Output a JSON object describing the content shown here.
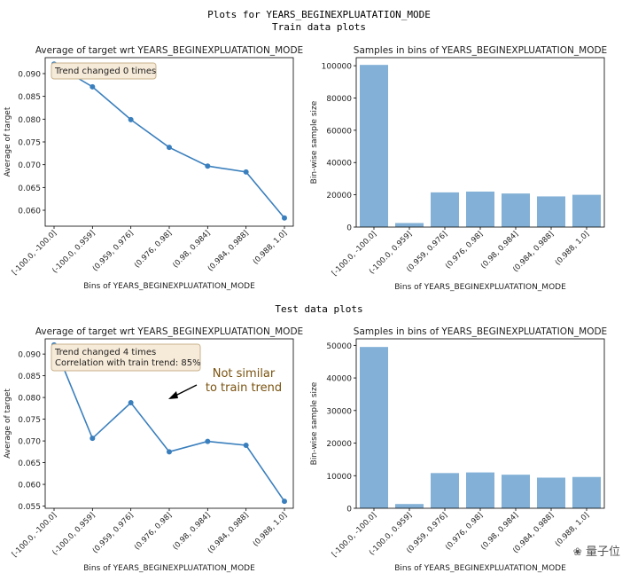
{
  "figure": {
    "title": "Plots for YEARS_BEGINEXPLUATATION_MODE",
    "train_header": "Train data plots",
    "test_header": "Test data plots"
  },
  "watermark": "量子位",
  "colors": {
    "line": "#3a7fbd",
    "bar": "#82b0d6",
    "box_fill": "#f6ead8",
    "box_edge": "#c9b38e",
    "annotation": "#7a5310"
  },
  "chart_data": [
    {
      "id": "train-line",
      "type": "line",
      "title": "Average of target wrt YEARS_BEGINEXPLUATATION_MODE",
      "xlabel": "Bins of YEARS_BEGINEXPLUATATION_MODE",
      "ylabel": "Average of target",
      "categories": [
        "[-100.0, -100.0]",
        "(-100.0, 0.959]",
        "(0.959, 0.976]",
        "(0.976, 0.98]",
        "(0.98, 0.984]",
        "(0.984, 0.988]",
        "(0.988, 1.0]"
      ],
      "values": [
        0.0921,
        0.0871,
        0.0799,
        0.0738,
        0.0697,
        0.0684,
        0.0583
      ],
      "ylim": [
        0.0565,
        0.0935
      ],
      "yticks": [
        0.06,
        0.065,
        0.07,
        0.075,
        0.08,
        0.085,
        0.09
      ],
      "ytick_labels": [
        "0.060",
        "0.065",
        "0.070",
        "0.075",
        "0.080",
        "0.085",
        "0.090"
      ],
      "info_lines": [
        "Trend changed 0 times"
      ]
    },
    {
      "id": "train-bar",
      "type": "bar",
      "title": "Samples in bins of YEARS_BEGINEXPLUATATION_MODE",
      "xlabel": "Bins of YEARS_BEGINEXPLUATATION_MODE",
      "ylabel": "Bin-wise sample size",
      "categories": [
        "[-100.0, -100.0]",
        "(-100.0, 0.959]",
        "(0.959, 0.976]",
        "(0.976, 0.98]",
        "(0.98, 0.984]",
        "(0.984, 0.988]",
        "(0.988, 1.0]"
      ],
      "values": [
        100500,
        2500,
        21500,
        22000,
        20800,
        19000,
        20000
      ],
      "ylim": [
        0,
        105000
      ],
      "yticks": [
        0,
        20000,
        40000,
        60000,
        80000,
        100000
      ],
      "ytick_labels": [
        "0",
        "20000",
        "40000",
        "60000",
        "80000",
        "100000"
      ]
    },
    {
      "id": "test-line",
      "type": "line",
      "title": "Average of target wrt YEARS_BEGINEXPLUATATION_MODE",
      "xlabel": "Bins of YEARS_BEGINEXPLUATATION_MODE",
      "ylabel": "Average of target",
      "categories": [
        "[-100.0, -100.0]",
        "(-100.0, 0.959]",
        "(0.959, 0.976]",
        "(0.976, 0.98]",
        "(0.98, 0.984]",
        "(0.984, 0.988]",
        "(0.988, 1.0]"
      ],
      "values": [
        0.0921,
        0.0706,
        0.0788,
        0.0675,
        0.0699,
        0.069,
        0.0561
      ],
      "ylim": [
        0.0545,
        0.0935
      ],
      "yticks": [
        0.055,
        0.06,
        0.065,
        0.07,
        0.075,
        0.08,
        0.085,
        0.09
      ],
      "ytick_labels": [
        "0.055",
        "0.060",
        "0.065",
        "0.070",
        "0.075",
        "0.080",
        "0.085",
        "0.090"
      ],
      "info_lines": [
        "Trend changed 4 times",
        "Correlation with train trend: 85%"
      ],
      "annotation": [
        "Not similar",
        "to train trend"
      ]
    },
    {
      "id": "test-bar",
      "type": "bar",
      "title": "Samples in bins of YEARS_BEGINEXPLUATATION_MODE",
      "xlabel": "Bins of YEARS_BEGINEXPLUATATION_MODE",
      "ylabel": "Bin-wise sample size",
      "categories": [
        "[-100.0, -100.0]",
        "(-100.0, 0.959]",
        "(0.959, 0.976]",
        "(0.976, 0.98]",
        "(0.98, 0.984]",
        "(0.984, 0.988]",
        "(0.988, 1.0]"
      ],
      "values": [
        49500,
        1300,
        10800,
        11000,
        10300,
        9400,
        9600
      ],
      "ylim": [
        0,
        52000
      ],
      "yticks": [
        0,
        10000,
        20000,
        30000,
        40000,
        50000
      ],
      "ytick_labels": [
        "0",
        "10000",
        "20000",
        "30000",
        "40000",
        "50000"
      ]
    }
  ]
}
